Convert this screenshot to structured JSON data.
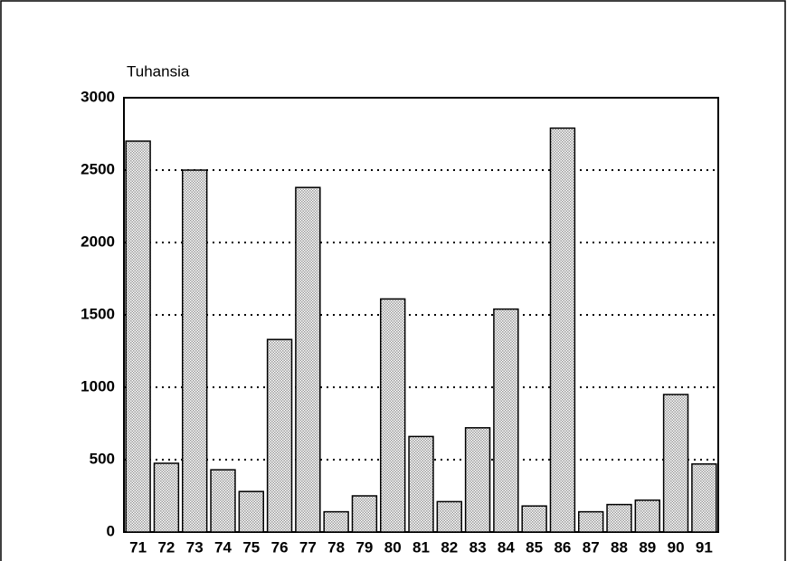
{
  "chart_data": {
    "type": "bar",
    "y_label": "Tuhansia",
    "categories": [
      "71",
      "72",
      "73",
      "74",
      "75",
      "76",
      "77",
      "78",
      "79",
      "80",
      "81",
      "82",
      "83",
      "84",
      "85",
      "86",
      "87",
      "88",
      "89",
      "90",
      "91"
    ],
    "values": [
      2700,
      475,
      2500,
      430,
      280,
      1330,
      2380,
      140,
      250,
      1610,
      660,
      210,
      720,
      1540,
      180,
      2790,
      140,
      190,
      220,
      950,
      470
    ],
    "color": "#9a9a9a",
    "ylim": [
      0,
      3000
    ],
    "yticks": [
      0,
      500,
      1000,
      1500,
      2000,
      2500,
      3000
    ],
    "grid": true
  }
}
